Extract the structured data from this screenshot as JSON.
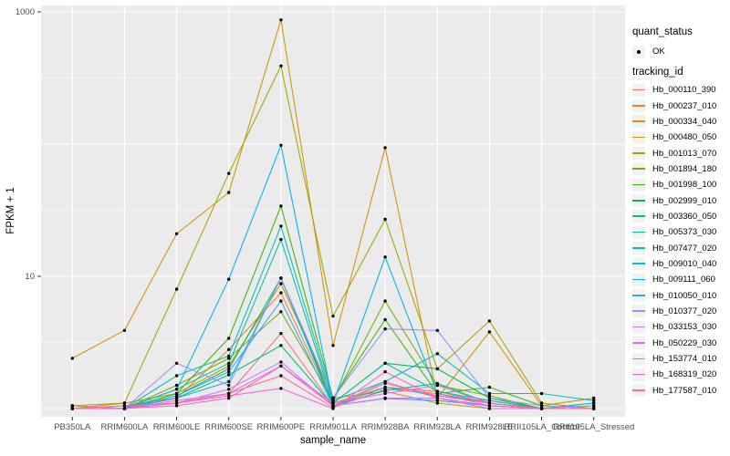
{
  "figure": {
    "background": "#FFFFFF",
    "panel_bg": "#EBEBEB",
    "grid_color": "#FFFFFF",
    "tick_text_color": "#4D4D4D",
    "point_color": "#000000"
  },
  "axes": {
    "x_title": "sample_name",
    "y_title": "FPKM + 1",
    "y_scale": "log10",
    "y_ticks": [
      {
        "label": "1000",
        "value": 1000
      },
      {
        "label": "10",
        "value": 10
      }
    ]
  },
  "legend": {
    "quant_status_title": "quant_status",
    "quant_status_ok_label": "OK",
    "tracking_id_title": "tracking_id",
    "key_bg": "#F2F2F2"
  },
  "chart_data": {
    "type": "line",
    "title": "",
    "xlabel": "sample_name",
    "ylabel": "FPKM + 1",
    "yscale": "log",
    "ylim": [
      1,
      1000
    ],
    "grid": true,
    "legend_position": "right",
    "point_marker": "black dot (quant_status = OK) on every data point",
    "categories": [
      "PB350LA",
      "RRIM600LA",
      "RRIM600LE",
      "RRIM600SE",
      "RRIM600PE",
      "RRIM901LA",
      "RRIM928BA",
      "RRIM928LA",
      "RRIM928LE",
      "RRII105LA_Control",
      "RRII105LA_Stressed"
    ],
    "series": [
      {
        "name": "Hb_000110_390",
        "color": "#F8766D",
        "values": [
          1.05,
          1.0,
          1.1,
          1.3,
          3.7,
          1.05,
          1.6,
          1.2,
          1.05,
          1.0,
          1.05
        ]
      },
      {
        "name": "Hb_000237_010",
        "color": "#EA8331",
        "values": [
          1.0,
          1.05,
          1.2,
          2.8,
          7.5,
          1.1,
          1.45,
          1.35,
          1.1,
          1.0,
          1.0
        ]
      },
      {
        "name": "Hb_000334_040",
        "color": "#D89000",
        "values": [
          2.4,
          3.9,
          21,
          43,
          870,
          3.0,
          94,
          1.2,
          3.8,
          1.05,
          1.2
        ]
      },
      {
        "name": "Hb_000480_050",
        "color": "#C09B00",
        "values": [
          1.05,
          1.1,
          1.3,
          2.1,
          8.8,
          1.2,
          1.35,
          1.1,
          1.0,
          1.0,
          1.05
        ]
      },
      {
        "name": "Hb_001013_070",
        "color": "#A3A500",
        "values": [
          1.0,
          1.1,
          8.0,
          60,
          390,
          5.0,
          27,
          2.0,
          4.6,
          1.1,
          1.0
        ]
      },
      {
        "name": "Hb_001894_180",
        "color": "#7CAE00",
        "values": [
          1.0,
          1.0,
          1.5,
          2.4,
          5.4,
          1.15,
          6.5,
          1.5,
          1.25,
          1.0,
          1.0
        ]
      },
      {
        "name": "Hb_001998_100",
        "color": "#39B600",
        "values": [
          1.0,
          1.0,
          1.3,
          3.4,
          34,
          1.2,
          4.7,
          1.3,
          1.45,
          1.05,
          1.0
        ]
      },
      {
        "name": "Hb_002999_010",
        "color": "#00BB4E",
        "values": [
          1.0,
          1.0,
          1.25,
          2.0,
          9.7,
          1.1,
          2.2,
          2.0,
          1.2,
          1.0,
          1.1
        ]
      },
      {
        "name": "Hb_003360_050",
        "color": "#00BF7D",
        "values": [
          1.0,
          1.0,
          1.2,
          1.8,
          3.0,
          1.05,
          1.37,
          1.55,
          1.1,
          1.0,
          1.0
        ]
      },
      {
        "name": "Hb_005373_030",
        "color": "#00C1A3",
        "values": [
          1.0,
          1.0,
          1.4,
          2.2,
          19,
          1.1,
          2.2,
          1.35,
          1.15,
          1.0,
          1.0
        ]
      },
      {
        "name": "Hb_007477_020",
        "color": "#00BFC4",
        "values": [
          1.0,
          1.0,
          1.77,
          2.5,
          24,
          1.15,
          1.6,
          2.6,
          1.3,
          1.3,
          1.15
        ]
      },
      {
        "name": "Hb_009010_040",
        "color": "#00BAE0",
        "values": [
          1.0,
          1.0,
          1.2,
          1.6,
          9.7,
          1.05,
          1.45,
          1.25,
          1.1,
          1.0,
          1.1
        ]
      },
      {
        "name": "Hb_009111_060",
        "color": "#00B0F6",
        "values": [
          1.0,
          1.0,
          1.4,
          9.5,
          98,
          1.1,
          14,
          1.3,
          1.1,
          1.0,
          1.0
        ]
      },
      {
        "name": "Hb_010050_010",
        "color": "#35A2FF",
        "values": [
          1.05,
          1.0,
          1.25,
          1.9,
          6.5,
          1.05,
          1.19,
          1.15,
          1.05,
          1.0,
          1.0
        ]
      },
      {
        "name": "Hb_010377_020",
        "color": "#9590FF",
        "values": [
          1.0,
          1.0,
          2.2,
          1.5,
          9.7,
          1.2,
          4.0,
          3.9,
          1.2,
          1.05,
          1.0
        ]
      },
      {
        "name": "Hb_033153_030",
        "color": "#C77CFF",
        "values": [
          1.0,
          1.0,
          1.1,
          1.4,
          2.25,
          1.05,
          1.2,
          1.2,
          1.0,
          1.0,
          1.0
        ]
      },
      {
        "name": "Hb_050229_030",
        "color": "#E76BF3",
        "values": [
          1.0,
          1.0,
          1.15,
          1.3,
          2.1,
          1.1,
          1.3,
          1.5,
          1.1,
          1.0,
          1.05
        ]
      },
      {
        "name": "Hb_153774_010",
        "color": "#FA62DB",
        "values": [
          1.05,
          1.0,
          1.1,
          1.25,
          1.42,
          1.0,
          1.9,
          1.2,
          1.05,
          1.0,
          1.0
        ]
      },
      {
        "name": "Hb_168319_020",
        "color": "#FF62BC",
        "values": [
          1.0,
          1.0,
          1.05,
          1.2,
          2.1,
          1.05,
          1.55,
          1.25,
          1.1,
          1.0,
          1.0
        ]
      },
      {
        "name": "Hb_177587_010",
        "color": "#FF6A98",
        "values": [
          1.0,
          1.05,
          1.1,
          1.3,
          1.77,
          1.02,
          1.4,
          1.3,
          1.05,
          1.0,
          1.0
        ]
      }
    ]
  }
}
